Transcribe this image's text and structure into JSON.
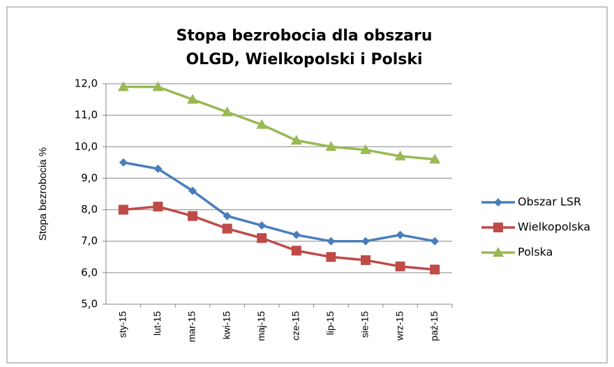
{
  "chart_data": {
    "type": "line",
    "title": [
      "Stopa bezrobocia dla obszaru",
      "OLGD, Wielkopolski i Polski"
    ],
    "y_label": "Stopa bezrobocia %",
    "categories": [
      "sty-15",
      "lut-15",
      "mar-15",
      "kwi-15",
      "maj-15",
      "cze-15",
      "lip-15",
      "sie-15",
      "wrz-15",
      "paź-15"
    ],
    "series": [
      {
        "name": "Obszar LSR",
        "color": "#4a7ebb",
        "marker": "diamond",
        "values": [
          9.5,
          9.3,
          8.6,
          7.8,
          7.5,
          7.2,
          7.0,
          7.0,
          7.2,
          7.0
        ]
      },
      {
        "name": "Wielkopolska",
        "color": "#be4b48",
        "marker": "square",
        "values": [
          8.0,
          8.1,
          7.8,
          7.4,
          7.1,
          6.7,
          6.5,
          6.4,
          6.2,
          6.1
        ]
      },
      {
        "name": "Polska",
        "color": "#98b954",
        "marker": "triangle",
        "values": [
          11.9,
          11.9,
          11.5,
          11.1,
          10.7,
          10.2,
          10.0,
          9.9,
          9.7,
          9.6
        ]
      }
    ],
    "ylim": [
      5,
      12
    ],
    "yticks": [
      {
        "value": 5,
        "label": "5,0"
      },
      {
        "value": 6,
        "label": "6,0"
      },
      {
        "value": 7,
        "label": "7,0"
      },
      {
        "value": 8,
        "label": "8,0"
      },
      {
        "value": 9,
        "label": "9,0"
      },
      {
        "value": 10,
        "label": "10,0"
      },
      {
        "value": 11,
        "label": "11,0"
      },
      {
        "value": 12,
        "label": "12,0"
      }
    ],
    "grid": true,
    "legend": "right"
  }
}
